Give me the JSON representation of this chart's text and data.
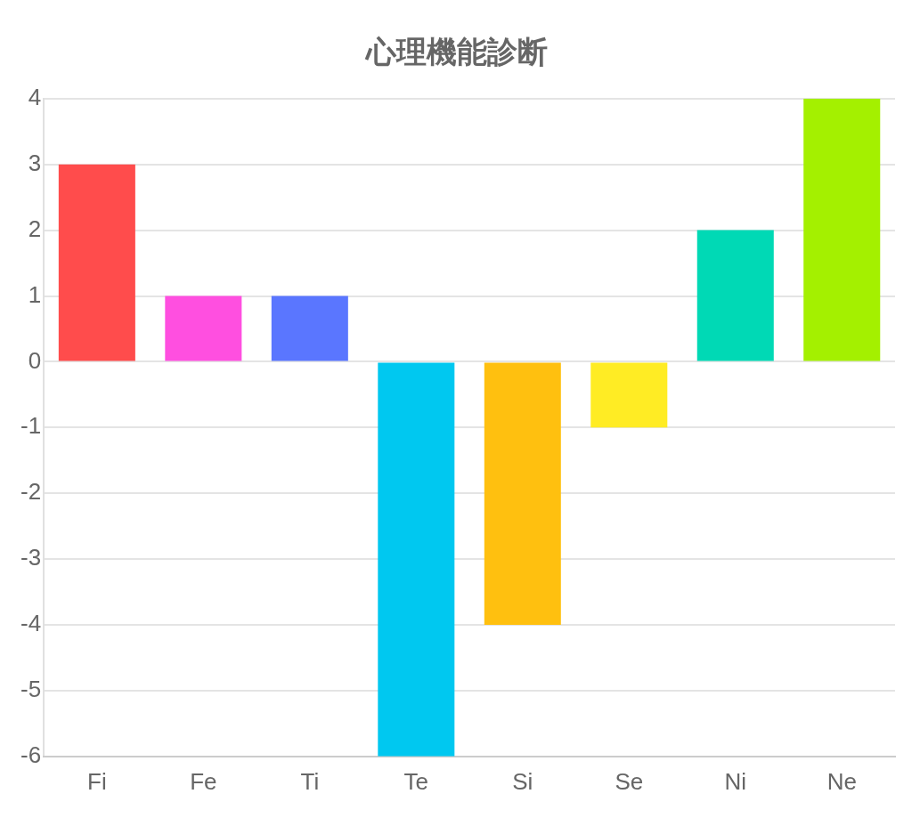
{
  "chart_data": {
    "type": "bar",
    "title": "心理機能診断",
    "categories": [
      "Fi",
      "Fe",
      "Ti",
      "Te",
      "Si",
      "Se",
      "Ni",
      "Ne"
    ],
    "values": [
      3,
      1,
      1,
      -6,
      -4,
      -1,
      2,
      4
    ],
    "colors": [
      "#ff4c4c",
      "#ff4fe0",
      "#5a76ff",
      "#00c8f0",
      "#ffc00f",
      "#ffec24",
      "#00d9b5",
      "#a4f000"
    ],
    "ylim": [
      -6,
      4
    ],
    "yticks": [
      -6,
      -5,
      -4,
      -3,
      -2,
      -1,
      0,
      1,
      2,
      3,
      4
    ],
    "grid": "y",
    "legend": false
  }
}
